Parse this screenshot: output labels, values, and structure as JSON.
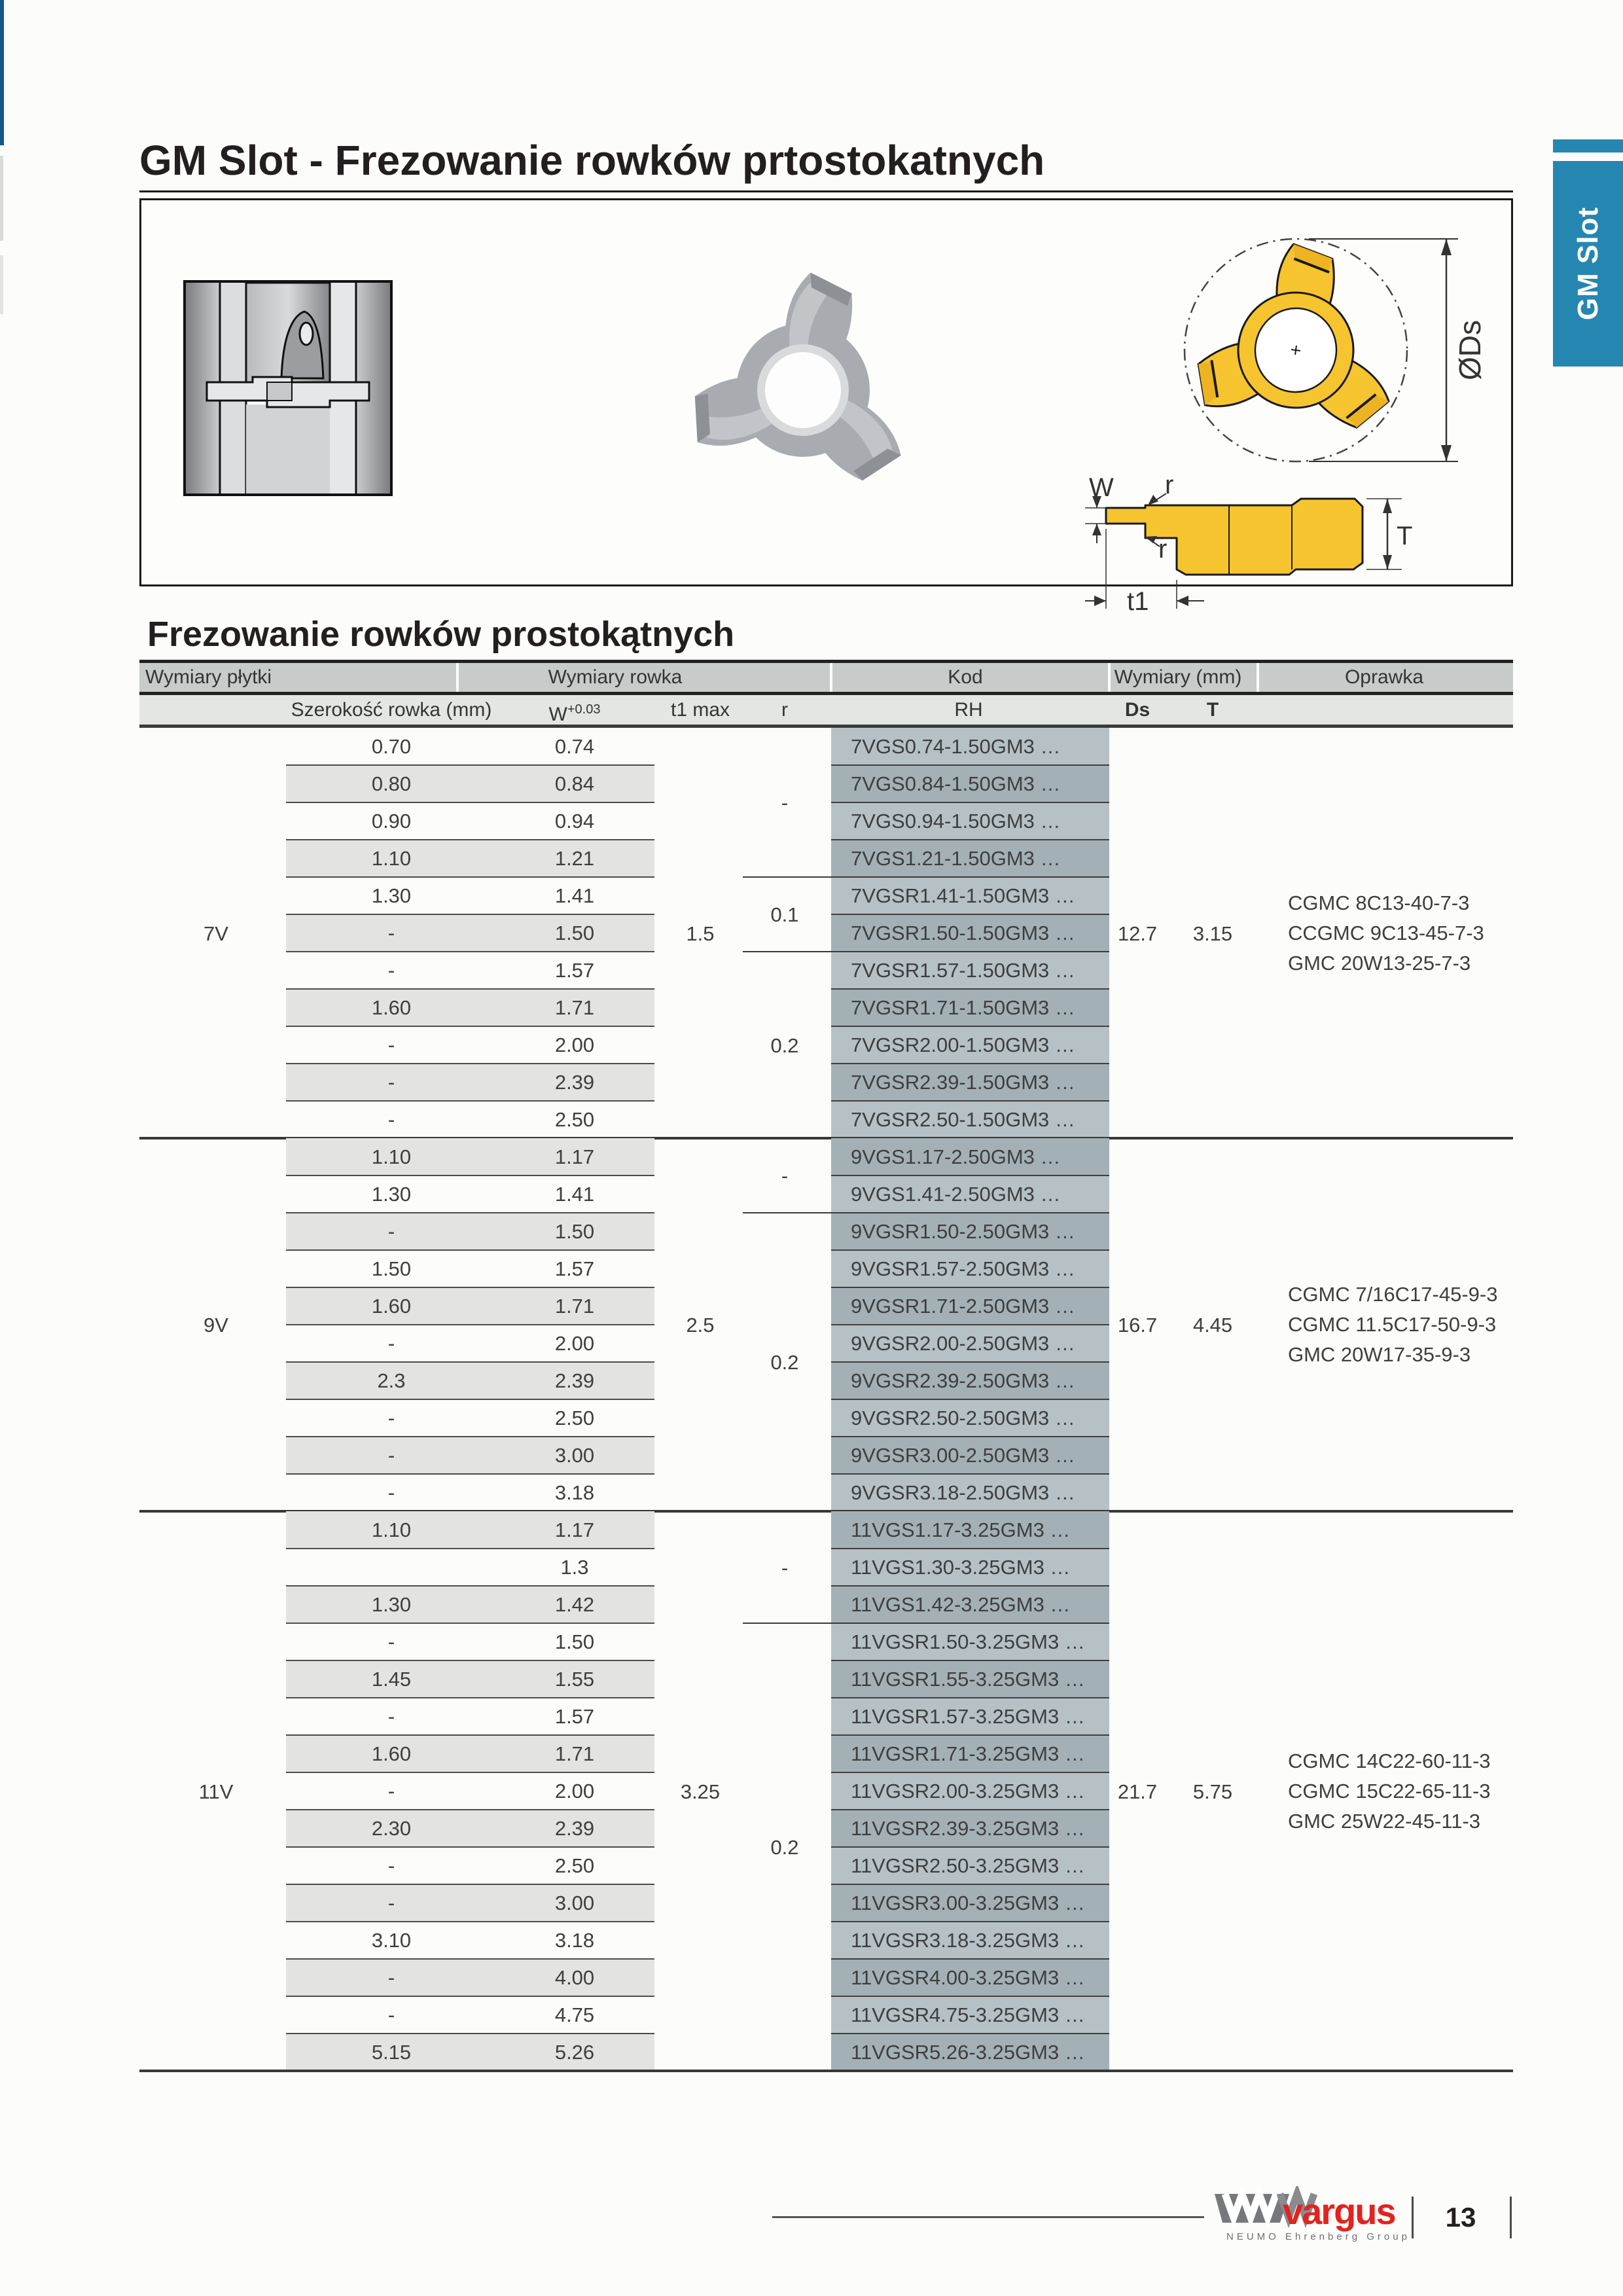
{
  "page": {
    "title": "GM Slot - Frezowanie rowków prtostokatnych",
    "side_tab": "GM Slot",
    "page_number": "13"
  },
  "section_heading": "Frezowanie rowków prostokątnych",
  "diagram": {
    "labels": {
      "w": "W",
      "r_top": "r",
      "r_bottom": "r",
      "t1": "t1",
      "T": "T",
      "ds": "ØDs"
    }
  },
  "logo": {
    "brand": "vargus",
    "subtitle": "NEUMO Ehrenberg Group"
  },
  "colors": {
    "tab_blue": "#2587b1",
    "edge_blue": "#15568d",
    "vargus_red": "#e2231e",
    "insert_yellow": "#f6c42e",
    "row_stripe": "#e3e4e2",
    "kod_light": "#b5c1c5",
    "kod_dark": "#a3b1b7"
  },
  "table": {
    "group_headers": [
      "Wymiary płytki",
      "Wymiary rowka",
      "Kod",
      "Wymiary (mm)",
      "Oprawka"
    ],
    "col_headers": {
      "szerokosc": "Szerokość rowka (mm)",
      "w": "W",
      "w_tol": "+0.03",
      "t1": "t1 max",
      "r": "r",
      "rh": "RH",
      "ds": "Ds",
      "t": "T"
    },
    "sections": [
      {
        "label": "7V",
        "t1_max": "1.5",
        "ds": "12.7",
        "t": "3.15",
        "oprawka": [
          "CGMC 8C13-40-7-3",
          "CCGMC 9C13-45-7-3",
          "GMC 20W13-25-7-3"
        ],
        "r_groups": [
          {
            "label": "-",
            "rows": 4
          },
          {
            "label": "0.1",
            "rows": 2
          },
          {
            "label": "0.2",
            "rows": 5
          }
        ],
        "rows": [
          {
            "szerokosc": "0.70",
            "w": "0.74",
            "kod": "7VGS0.74-1.50GM3 …"
          },
          {
            "szerokosc": "0.80",
            "w": "0.84",
            "kod": "7VGS0.84-1.50GM3 …"
          },
          {
            "szerokosc": "0.90",
            "w": "0.94",
            "kod": "7VGS0.94-1.50GM3 …"
          },
          {
            "szerokosc": "1.10",
            "w": "1.21",
            "kod": "7VGS1.21-1.50GM3 …"
          },
          {
            "szerokosc": "1.30",
            "w": "1.41",
            "kod": "7VGSR1.41-1.50GM3 …"
          },
          {
            "szerokosc": "-",
            "w": "1.50",
            "kod": "7VGSR1.50-1.50GM3 …"
          },
          {
            "szerokosc": "-",
            "w": "1.57",
            "kod": "7VGSR1.57-1.50GM3 …"
          },
          {
            "szerokosc": "1.60",
            "w": "1.71",
            "kod": "7VGSR1.71-1.50GM3 …"
          },
          {
            "szerokosc": "-",
            "w": "2.00",
            "kod": "7VGSR2.00-1.50GM3 …"
          },
          {
            "szerokosc": "-",
            "w": "2.39",
            "kod": "7VGSR2.39-1.50GM3 …"
          },
          {
            "szerokosc": "-",
            "w": "2.50",
            "kod": "7VGSR2.50-1.50GM3 …"
          }
        ]
      },
      {
        "label": "9V",
        "t1_max": "2.5",
        "ds": "16.7",
        "t": "4.45",
        "oprawka": [
          "CGMC 7/16C17-45-9-3",
          "CGMC 11.5C17-50-9-3",
          "GMC 20W17-35-9-3"
        ],
        "r_groups": [
          {
            "label": "-",
            "rows": 2
          },
          {
            "label": "0.2",
            "rows": 8
          }
        ],
        "rows": [
          {
            "szerokosc": "1.10",
            "w": "1.17",
            "kod": "9VGS1.17-2.50GM3 …"
          },
          {
            "szerokosc": "1.30",
            "w": "1.41",
            "kod": "9VGS1.41-2.50GM3 …"
          },
          {
            "szerokosc": "-",
            "w": "1.50",
            "kod": "9VGSR1.50-2.50GM3 …"
          },
          {
            "szerokosc": "1.50",
            "w": "1.57",
            "kod": "9VGSR1.57-2.50GM3 …"
          },
          {
            "szerokosc": "1.60",
            "w": "1.71",
            "kod": "9VGSR1.71-2.50GM3 …"
          },
          {
            "szerokosc": "-",
            "w": "2.00",
            "kod": "9VGSR2.00-2.50GM3 …"
          },
          {
            "szerokosc": "2.3",
            "w": "2.39",
            "kod": "9VGSR2.39-2.50GM3 …"
          },
          {
            "szerokosc": "-",
            "w": "2.50",
            "kod": "9VGSR2.50-2.50GM3 …"
          },
          {
            "szerokosc": "-",
            "w": "3.00",
            "kod": "9VGSR3.00-2.50GM3 …"
          },
          {
            "szerokosc": "-",
            "w": "3.18",
            "kod": "9VGSR3.18-2.50GM3 …"
          }
        ]
      },
      {
        "label": "11V",
        "t1_max": "3.25",
        "ds": "21.7",
        "t": "5.75",
        "oprawka": [
          "CGMC 14C22-60-11-3",
          "CGMC 15C22-65-11-3",
          "GMC 25W22-45-11-3"
        ],
        "r_groups": [
          {
            "label": "-",
            "rows": 3
          },
          {
            "label": "0.2",
            "rows": 12
          }
        ],
        "rows": [
          {
            "szerokosc": "1.10",
            "w": "1.17",
            "kod": "11VGS1.17-3.25GM3 …"
          },
          {
            "szerokosc": "",
            "w": "1.3",
            "kod": "11VGS1.30-3.25GM3 …"
          },
          {
            "szerokosc": "1.30",
            "w": "1.42",
            "kod": "11VGS1.42-3.25GM3 …"
          },
          {
            "szerokosc": "-",
            "w": "1.50",
            "kod": "11VGSR1.50-3.25GM3 …"
          },
          {
            "szerokosc": "1.45",
            "w": "1.55",
            "kod": "11VGSR1.55-3.25GM3 …"
          },
          {
            "szerokosc": "-",
            "w": "1.57",
            "kod": "11VGSR1.57-3.25GM3 …"
          },
          {
            "szerokosc": "1.60",
            "w": "1.71",
            "kod": "11VGSR1.71-3.25GM3 …"
          },
          {
            "szerokosc": "-",
            "w": "2.00",
            "kod": "11VGSR2.00-3.25GM3 …"
          },
          {
            "szerokosc": "2.30",
            "w": "2.39",
            "kod": "11VGSR2.39-3.25GM3 …"
          },
          {
            "szerokosc": "-",
            "w": "2.50",
            "kod": "11VGSR2.50-3.25GM3 …"
          },
          {
            "szerokosc": "-",
            "w": "3.00",
            "kod": "11VGSR3.00-3.25GM3 …"
          },
          {
            "szerokosc": "3.10",
            "w": "3.18",
            "kod": "11VGSR3.18-3.25GM3 …"
          },
          {
            "szerokosc": "-",
            "w": "4.00",
            "kod": "11VGSR4.00-3.25GM3 …"
          },
          {
            "szerokosc": "-",
            "w": "4.75",
            "kod": "11VGSR4.75-3.25GM3 …"
          },
          {
            "szerokosc": "5.15",
            "w": "5.26",
            "kod": "11VGSR5.26-3.25GM3 …"
          }
        ]
      }
    ]
  }
}
